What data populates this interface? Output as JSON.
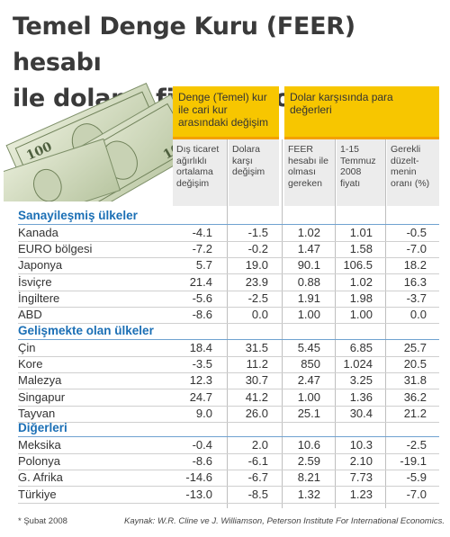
{
  "title": {
    "line1": "Temel Denge Kuru (FEER) hesabı",
    "line2": "ile doların fiyatı ne olmalı?"
  },
  "header": {
    "group1": "Denge (Temel) kur ile cari kur arasındaki değişim",
    "group2": "Dolar karşısında para değerleri",
    "columns": [
      "Dış ticaret ağırlıklı ortalama değişim",
      "Dolara karşı değişim",
      "FEER hesabı ile olması gereken",
      "1-15 Temmuz 2008 fiyatı",
      "Gerekli düzelt-menin oranı (%)"
    ]
  },
  "groups": [
    {
      "label": "Sanayileşmiş ülkeler",
      "rows": [
        {
          "name": "Kanada",
          "values": [
            "-4.1",
            "-1.5",
            "1.02",
            "1.01",
            "-0.5"
          ]
        },
        {
          "name": "EURO bölgesi",
          "values": [
            "-7.2",
            "-0.2",
            "1.47",
            "1.58",
            "-7.0"
          ]
        },
        {
          "name": "Japonya",
          "values": [
            "5.7",
            "19.0",
            "90.1",
            "106.5",
            "18.2"
          ]
        },
        {
          "name": "İsviçre",
          "values": [
            "21.4",
            "23.9",
            "0.88",
            "1.02",
            "16.3"
          ]
        },
        {
          "name": "İngiltere",
          "values": [
            "-5.6",
            "-2.5",
            "1.91",
            "1.98",
            "-3.7"
          ]
        },
        {
          "name": "ABD",
          "values": [
            "-8.6",
            "0.0",
            "1.00",
            "1.00",
            "0.0"
          ]
        }
      ]
    },
    {
      "label": "Gelişmekte olan ülkeler",
      "rows": [
        {
          "name": "Çin",
          "values": [
            "18.4",
            "31.5",
            "5.45",
            "6.85",
            "25.7"
          ]
        },
        {
          "name": "Kore",
          "values": [
            "-3.5",
            "11.2",
            "850",
            "1.024",
            "20.5"
          ]
        },
        {
          "name": "Malezya",
          "values": [
            "12.3",
            "30.7",
            "2.47",
            "3.25",
            "31.8"
          ]
        },
        {
          "name": "Singapur",
          "values": [
            "24.7",
            "41.2",
            "1.00",
            "1.36",
            "36.2"
          ]
        },
        {
          "name": "Tayvan",
          "values": [
            "9.0",
            "26.0",
            "25.1",
            "30.4",
            "21.2"
          ]
        }
      ]
    },
    {
      "label": "Diğerleri",
      "rows": [
        {
          "name": "Meksika",
          "values": [
            "-0.4",
            "2.0",
            "10.6",
            "10.3",
            "-2.5"
          ]
        },
        {
          "name": "Polonya",
          "values": [
            "-8.6",
            "-6.1",
            "2.59",
            "2.10",
            "-19.1"
          ]
        },
        {
          "name": "G. Afrika",
          "values": [
            "-14.6",
            "-6.7",
            "8.21",
            "7.73",
            "-5.9"
          ]
        },
        {
          "name": "Türkiye",
          "values": [
            "-13.0",
            "-8.5",
            "1.32",
            "1.23",
            "-7.0"
          ]
        }
      ]
    }
  ],
  "footer": {
    "note": "* Şubat 2008",
    "source": "Kaynak: W.R. Cline ve J. Williamson, Peterson Institute For International Economics."
  },
  "colors": {
    "accent_yellow": "#f7c600",
    "accent_orange": "#f3a100",
    "group_blue": "#1b6fb5",
    "header_gray": "#ececec"
  },
  "illustration": "dollar-bills-icon",
  "chart_data": {
    "type": "table",
    "title": "Temel Denge Kuru (FEER) hesabı ile doların fiyatı ne olmalı?",
    "columns": [
      "Dış ticaret ağırlıklı ortalama değişim",
      "Dolara karşı değişim",
      "FEER hesabı ile olması gereken",
      "1-15 Temmuz 2008 fiyatı",
      "Gerekli düzelt-menin oranı (%)"
    ],
    "rows": [
      [
        "Kanada",
        -4.1,
        -1.5,
        1.02,
        1.01,
        -0.5
      ],
      [
        "EURO bölgesi",
        -7.2,
        -0.2,
        1.47,
        1.58,
        -7.0
      ],
      [
        "Japonya",
        5.7,
        19.0,
        90.1,
        106.5,
        18.2
      ],
      [
        "İsviçre",
        21.4,
        23.9,
        0.88,
        1.02,
        16.3
      ],
      [
        "İngiltere",
        -5.6,
        -2.5,
        1.91,
        1.98,
        -3.7
      ],
      [
        "ABD",
        -8.6,
        0.0,
        1.0,
        1.0,
        0.0
      ],
      [
        "Çin",
        18.4,
        31.5,
        5.45,
        6.85,
        25.7
      ],
      [
        "Kore",
        -3.5,
        11.2,
        850,
        1.024,
        20.5
      ],
      [
        "Malezya",
        12.3,
        30.7,
        2.47,
        3.25,
        31.8
      ],
      [
        "Singapur",
        24.7,
        41.2,
        1.0,
        1.36,
        36.2
      ],
      [
        "Tayvan",
        9.0,
        26.0,
        25.1,
        30.4,
        21.2
      ],
      [
        "Meksika",
        -0.4,
        2.0,
        10.6,
        10.3,
        -2.5
      ],
      [
        "Polonya",
        -8.6,
        -6.1,
        2.59,
        2.1,
        -19.1
      ],
      [
        "G. Afrika",
        -14.6,
        -6.7,
        8.21,
        7.73,
        -5.9
      ],
      [
        "Türkiye",
        -13.0,
        -8.5,
        1.32,
        1.23,
        -7.0
      ]
    ]
  }
}
